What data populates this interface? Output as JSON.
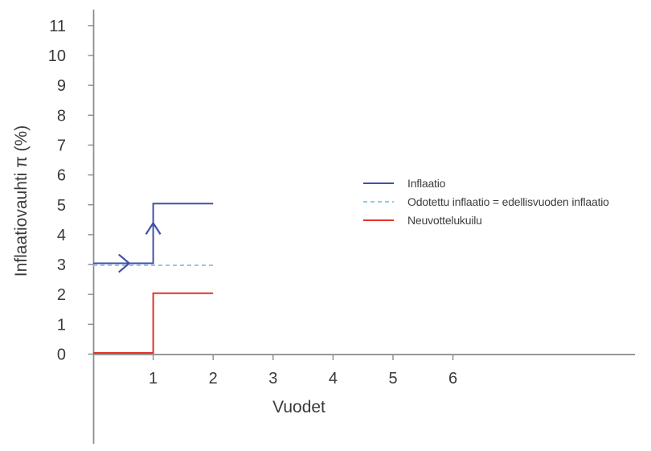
{
  "figure": {
    "background_color": "#ffffff",
    "axis_color": "#8a8a8a",
    "text_color": "#3a3a3a"
  },
  "legend": {
    "items": [
      {
        "label": "Inflaatio",
        "color": "#3f51a8",
        "line_style": "solid"
      },
      {
        "label": "Odotettu inflaatio = edellisvuoden inflaatio",
        "color": "#8dcbe8",
        "line_style": "dashed"
      },
      {
        "label": "Neuvottelukuilu",
        "color": "#e23328",
        "line_style": "solid"
      }
    ]
  },
  "chart_data": {
    "type": "line",
    "title": "",
    "xlabel": "Vuodet",
    "ylabel": "Inflaatiovauhti π (%)",
    "xlim": [
      0,
      9
    ],
    "ylim": [
      0,
      11.5
    ],
    "x_ticks": [
      1,
      2,
      3,
      4,
      5,
      6
    ],
    "y_ticks": [
      0,
      1,
      2,
      3,
      4,
      5,
      6,
      7,
      8,
      9,
      10,
      11
    ],
    "grid": false,
    "legend_position": "center-right",
    "series": [
      {
        "name": "Inflaatio",
        "color": "#3f51a8",
        "line_style": "solid",
        "points": [
          [
            0,
            3
          ],
          [
            1,
            3
          ],
          [
            1,
            5
          ],
          [
            2,
            5
          ]
        ]
      },
      {
        "name": "Odotettu inflaatio = edellisvuoden inflaatio",
        "color": "#8dcbe8",
        "line_style": "dashed",
        "points": [
          [
            0,
            3
          ],
          [
            2,
            3
          ]
        ]
      },
      {
        "name": "Neuvottelukuilu",
        "color": "#e23328",
        "line_style": "solid",
        "points": [
          [
            0,
            0
          ],
          [
            1,
            0
          ],
          [
            1,
            2
          ],
          [
            2,
            2
          ]
        ]
      }
    ],
    "annotations": [
      {
        "type": "arrow-right",
        "x": 0.6,
        "y": 3,
        "color": "#3f51a8"
      },
      {
        "type": "arrow-up",
        "x": 1,
        "y": 4.35,
        "color": "#3f51a8"
      }
    ]
  }
}
